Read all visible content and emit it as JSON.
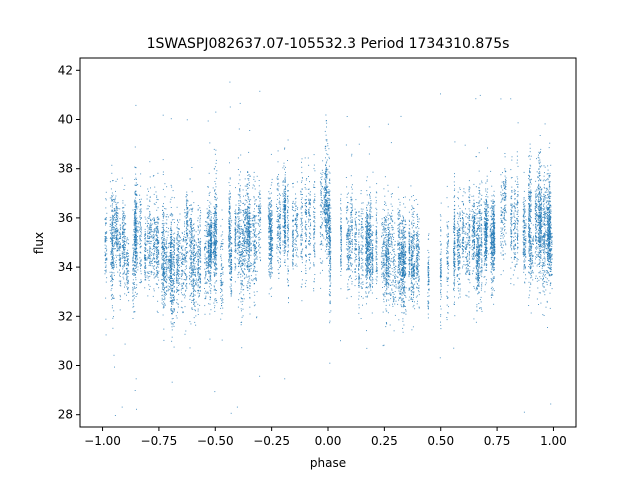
{
  "chart_data": {
    "type": "scatter",
    "title": "1SWASPJ082637.07-105532.3 Period 1734310.875s",
    "xlabel": "phase",
    "ylabel": "flux",
    "xlim": [
      -1.1,
      1.1
    ],
    "ylim": [
      27.5,
      42.5
    ],
    "xticks": [
      -1.0,
      -0.75,
      -0.5,
      -0.25,
      0.0,
      0.25,
      0.5,
      0.75,
      1.0
    ],
    "xtick_labels": [
      "−1.00",
      "−0.75",
      "−0.50",
      "−0.25",
      "0.00",
      "0.25",
      "0.50",
      "0.75",
      "1.00"
    ],
    "yticks": [
      28,
      30,
      32,
      34,
      36,
      38,
      40,
      42
    ],
    "ytick_labels": [
      "28",
      "30",
      "32",
      "34",
      "36",
      "38",
      "40",
      "42"
    ],
    "marker_color": "#1f77b4",
    "grid": false,
    "series_profile": {
      "phase": [
        -1.0,
        -0.9,
        -0.8,
        -0.7,
        -0.6,
        -0.5,
        -0.4,
        -0.3,
        -0.2,
        -0.1,
        0.0,
        0.1,
        0.2,
        0.3,
        0.4,
        0.5,
        0.6,
        0.7,
        0.8,
        0.9,
        1.0
      ],
      "median_flux": [
        35.6,
        35.0,
        34.6,
        34.1,
        34.3,
        34.6,
        35.1,
        35.2,
        35.4,
        35.5,
        35.6,
        35.0,
        34.6,
        34.1,
        34.3,
        34.6,
        35.1,
        35.2,
        35.4,
        35.5,
        35.6
      ],
      "scatter_sd": 1.1,
      "approx_points": 14000
    }
  }
}
